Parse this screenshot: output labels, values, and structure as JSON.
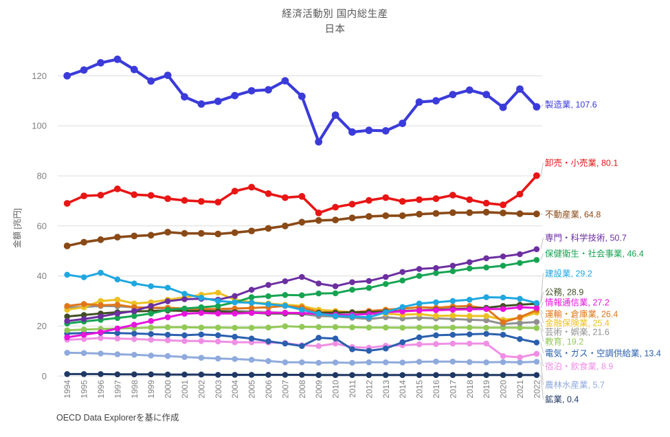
{
  "title": {
    "line1": "経済活動別 国内総生産",
    "line2": "日本"
  },
  "source": "OECD Data Explorerを基に作成",
  "chart_data": {
    "type": "line",
    "title": "経済活動別 国内総生産 日本",
    "xlabel": "",
    "ylabel": "金額 [兆円]",
    "ylim": [
      0,
      130
    ],
    "yticks": [
      0,
      20,
      40,
      60,
      80,
      100,
      120
    ],
    "grid": true,
    "legend_position": "end-of-line-labels",
    "x": [
      "1994",
      "1995",
      "1996",
      "1997",
      "1998",
      "1999",
      "2000",
      "2001",
      "2002",
      "2003",
      "2004",
      "2005",
      "2006",
      "2007",
      "2008",
      "2009",
      "2010",
      "2011",
      "2012",
      "2013",
      "2014",
      "2015",
      "2016",
      "2017",
      "2018",
      "2019",
      "2020",
      "2021",
      "2022"
    ],
    "series": [
      {
        "id": "manufacturing",
        "name": "製造業",
        "color": "#3b3bda",
        "end_label": "107.6",
        "values": [
          120,
          122.3,
          125.2,
          126.6,
          122.5,
          117.9,
          120.2,
          111.6,
          108.7,
          109.8,
          112.1,
          114,
          114.4,
          118,
          111.8,
          93.6,
          104.3,
          97.5,
          98.2,
          98,
          101,
          109.5,
          110,
          112.5,
          114.3,
          112.5,
          107.4,
          114.7,
          107.6
        ]
      },
      {
        "id": "wholesale-retail",
        "name": "卸売・小売業",
        "color": "#e81515",
        "end_label": "80.1",
        "values": [
          69,
          72,
          72.3,
          74.8,
          72.5,
          72.2,
          70.9,
          70.2,
          69.8,
          69.5,
          73.9,
          75.5,
          72.9,
          71.3,
          71.8,
          65.2,
          67.5,
          68.7,
          70.2,
          71.3,
          69.8,
          70.5,
          70.9,
          72.3,
          70.5,
          69.1,
          68.4,
          72.7,
          80.1
        ]
      },
      {
        "id": "real-estate",
        "name": "不動産業",
        "color": "#8a4a17",
        "end_label": "64.8",
        "values": [
          52,
          53.5,
          54.5,
          55.5,
          56,
          56.3,
          57.5,
          57,
          57,
          56.8,
          57.3,
          58,
          59,
          60,
          61.5,
          62.2,
          62.4,
          63.2,
          63.8,
          64.1,
          64.1,
          64.7,
          65,
          65.3,
          65.3,
          65.5,
          65.2,
          64.9,
          64.8
        ]
      },
      {
        "id": "professional-scientific",
        "name": "専門・科学技術",
        "color": "#6c2fa0",
        "end_label": "50.7",
        "values": [
          22,
          22.8,
          23.8,
          25,
          26,
          28,
          29.9,
          30.7,
          30.9,
          30.5,
          32,
          34.5,
          36.4,
          37.9,
          39.6,
          37,
          35.9,
          37.5,
          38,
          39.6,
          41.6,
          42.8,
          43.2,
          44.1,
          45.5,
          47.1,
          47.8,
          48.7,
          50.7
        ]
      },
      {
        "id": "health-social",
        "name": "保健衛生・社会事業",
        "color": "#16a452",
        "end_label": "46.4",
        "values": [
          21,
          21.8,
          22.5,
          23.2,
          24,
          25,
          26.5,
          27,
          27.5,
          28,
          29.5,
          31.5,
          31.9,
          32.4,
          32.3,
          33,
          33.1,
          34.5,
          35.2,
          36.8,
          38.2,
          40,
          41.2,
          41.9,
          43,
          43.4,
          44.1,
          45.2,
          46.4
        ]
      },
      {
        "id": "construction",
        "name": "建設業",
        "color": "#1fa7e0",
        "end_label": "29.2",
        "values": [
          40.5,
          39.5,
          41.3,
          38.6,
          37,
          35.9,
          35.3,
          32.9,
          31.3,
          30,
          29.5,
          29.3,
          28.7,
          28.1,
          26.5,
          24.9,
          24,
          23.8,
          23.5,
          25.5,
          27.6,
          29,
          29.5,
          30,
          30.5,
          31.5,
          31.4,
          30.9,
          29.2
        ]
      },
      {
        "id": "public-administration",
        "name": "公務",
        "color": "#3f4f23",
        "end_label": "28.9",
        "values": [
          23.8,
          24.4,
          25,
          25.5,
          25.8,
          26,
          26.2,
          26,
          26,
          25.8,
          25.5,
          25.3,
          25,
          25,
          25,
          25.3,
          25.3,
          25.5,
          25.5,
          25.8,
          26,
          26.3,
          26.5,
          26.8,
          27,
          27.3,
          28,
          28.5,
          28.9
        ]
      },
      {
        "id": "information-communication",
        "name": "情報通信業",
        "color": "#e714dc",
        "end_label": "27.2",
        "values": [
          15.5,
          16.5,
          17.5,
          19,
          20.5,
          22,
          23.5,
          24.9,
          25.2,
          25,
          25,
          25.2,
          25.3,
          25.3,
          25.2,
          24.8,
          24.5,
          24.5,
          24.8,
          25.5,
          25.8,
          26.2,
          26.3,
          26.5,
          26.7,
          26.8,
          26.8,
          27.5,
          27.2
        ]
      },
      {
        "id": "transport-storage",
        "name": "運輸・倉庫業",
        "color": "#e0761a",
        "end_label": "26.4",
        "values": [
          28,
          28.8,
          28.3,
          28.5,
          27.5,
          27.3,
          27.3,
          27,
          26.8,
          26.8,
          27,
          27.2,
          27.5,
          28,
          27.5,
          25.5,
          25.5,
          25.5,
          26,
          26.5,
          27,
          27.5,
          27.3,
          27.8,
          28,
          27,
          21.5,
          23.5,
          26.4
        ]
      },
      {
        "id": "finance-insurance",
        "name": "金融保険業",
        "color": "#edc021",
        "end_label": "25.4",
        "values": [
          26.5,
          27.5,
          30,
          30.5,
          29,
          29.5,
          30.5,
          31.5,
          32.5,
          33.3,
          30.5,
          29.5,
          29,
          28.5,
          28,
          26.5,
          26,
          25.5,
          25,
          25,
          24.5,
          24.8,
          24,
          24.2,
          24,
          24,
          22.5,
          23.2,
          25.4
        ]
      },
      {
        "id": "arts-entertainment",
        "name": "芸術・娯楽",
        "color": "#909090",
        "end_label": "21.6",
        "values": [
          27.4,
          27.6,
          28,
          27.9,
          27.5,
          27.2,
          27,
          26.8,
          26.5,
          26.3,
          26,
          25.8,
          25.5,
          25.3,
          24.8,
          24,
          23.8,
          23.3,
          22.8,
          23.5,
          23,
          23.3,
          23,
          22.8,
          22.5,
          22.3,
          20.8,
          21.2,
          21.6
        ]
      },
      {
        "id": "education",
        "name": "教育",
        "color": "#92c957",
        "end_label": "19.2",
        "values": [
          18.3,
          18.6,
          18.8,
          19,
          19.2,
          19.4,
          19.5,
          19.5,
          19.4,
          19.4,
          19.3,
          19.3,
          19.4,
          19.9,
          19.7,
          19.6,
          19.6,
          19.5,
          19.4,
          19.4,
          19.3,
          19.4,
          19.4,
          19.4,
          19.4,
          19.3,
          19.4,
          19.3,
          19.2
        ]
      },
      {
        "id": "electricity-gas",
        "name": "電気・ガス・空調供給業",
        "color": "#2a5fae",
        "end_label": "13.4",
        "values": [
          17,
          17.2,
          17.3,
          17.2,
          17,
          16.8,
          16.5,
          16.3,
          16.6,
          16.3,
          15.7,
          15,
          13.9,
          13,
          12,
          15.3,
          15,
          10.7,
          10.1,
          11,
          13.5,
          15.5,
          16.3,
          16.5,
          16.7,
          16.9,
          16.5,
          14.8,
          13.4
        ]
      },
      {
        "id": "accommodation-food",
        "name": "宿泊・飲食業",
        "color": "#ef8fe4",
        "end_label": "8.9",
        "values": [
          14.5,
          14.8,
          15.2,
          15,
          14.8,
          14.5,
          14.3,
          14,
          14,
          13.8,
          13.5,
          13.5,
          13.4,
          13.2,
          12.3,
          12,
          13,
          11.6,
          11.3,
          12.1,
          12.3,
          12.7,
          12.8,
          13,
          13,
          13,
          8,
          7.5,
          8.9
        ]
      },
      {
        "id": "agriculture-forestry-fisheries",
        "name": "農林水産業",
        "color": "#8faadc",
        "end_label": "5.7",
        "values": [
          9.3,
          9.2,
          9,
          8.7,
          8.5,
          8.2,
          8,
          7.6,
          7.3,
          7,
          6.8,
          6.5,
          6,
          5.5,
          5.5,
          5.3,
          5.4,
          5.3,
          5.5,
          5.5,
          5.4,
          5.7,
          5.8,
          5.8,
          5.6,
          5.5,
          5.6,
          5.5,
          5.7
        ]
      },
      {
        "id": "mining",
        "name": "鉱業",
        "color": "#1f3864",
        "end_label": "0.4",
        "values": [
          0.8,
          0.8,
          0.8,
          0.7,
          0.7,
          0.7,
          0.6,
          0.6,
          0.6,
          0.5,
          0.5,
          0.5,
          0.5,
          0.5,
          0.5,
          0.4,
          0.4,
          0.4,
          0.4,
          0.4,
          0.4,
          0.4,
          0.4,
          0.4,
          0.4,
          0.4,
          0.4,
          0.4,
          0.4
        ]
      }
    ]
  }
}
